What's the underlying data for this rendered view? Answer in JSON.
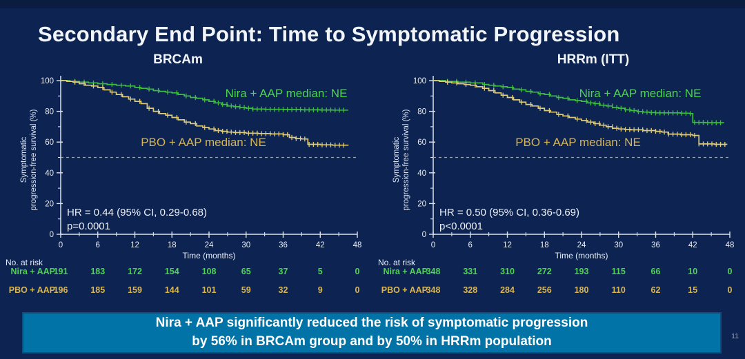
{
  "slide": {
    "title": "Secondary End Point: Time to Symptomatic Progression",
    "page_number": "11",
    "banner": {
      "line1": "Nira + AAP significantly reduced the risk of symptomatic progression",
      "line2": "by 56% in BRCAm group and by 50% in HRRm population"
    }
  },
  "colors": {
    "background": "#0d2452",
    "banner_fill": "#0273a6",
    "nira_text_green": "#4fd44f",
    "nira_curve_green": "#3fbd41",
    "pbo_text_gold": "#d8b552",
    "pbo_curve_gold": "#decb78",
    "axis_white": "#dde3ee",
    "reference_line_gray": "#9aa2b2"
  },
  "chart_data": [
    {
      "type": "line",
      "subtype": "kaplan-meier-step",
      "title": "BRCAm",
      "ylabel_line1": "Symptomatic",
      "ylabel_line2": "progression-free survival (%)",
      "xlabel": "Time (months)",
      "x_ticks": [
        0,
        6,
        12,
        18,
        24,
        30,
        36,
        42,
        48
      ],
      "x_minor_ticks": [
        3,
        9,
        15,
        21,
        27,
        33,
        39,
        45
      ],
      "y_ticks": [
        100,
        80,
        60,
        40,
        20,
        0
      ],
      "y_minor_ticks": [
        90,
        70,
        50,
        30,
        10
      ],
      "xlim": [
        0,
        48
      ],
      "ylim": [
        0,
        100
      ],
      "reference_line_y": 50,
      "grid": false,
      "hr_text": "HR = 0.44 (95% CI, 0.29-0.68)",
      "p_text": "p=0.0001",
      "series": [
        {
          "name": "Nira + AAP",
          "annotation": "Nira + AAP median: NE",
          "points": [
            [
              0,
              100
            ],
            [
              1.5,
              99.5
            ],
            [
              3,
              99
            ],
            [
              4.5,
              98.5
            ],
            [
              6,
              98
            ],
            [
              7.5,
              97.5
            ],
            [
              9,
              97
            ],
            [
              10.5,
              96.5
            ],
            [
              12,
              95.5
            ],
            [
              13,
              95
            ],
            [
              14,
              94.5
            ],
            [
              15,
              93.5
            ],
            [
              16,
              93
            ],
            [
              17,
              92.5
            ],
            [
              18,
              92
            ],
            [
              19,
              91
            ],
            [
              20,
              90
            ],
            [
              21,
              89
            ],
            [
              22,
              88.5
            ],
            [
              23,
              87.5
            ],
            [
              24,
              86.5
            ],
            [
              25,
              85.5
            ],
            [
              26,
              84.5
            ],
            [
              27,
              83.5
            ],
            [
              28,
              83
            ],
            [
              29,
              82.5
            ],
            [
              30,
              82
            ],
            [
              31,
              81.5
            ],
            [
              33,
              81.3
            ],
            [
              36,
              81.2
            ],
            [
              39,
              81
            ],
            [
              42,
              80.9
            ],
            [
              44,
              80.8
            ],
            [
              46.5,
              80.8
            ]
          ]
        },
        {
          "name": "PBO + AAP",
          "annotation": "PBO + AAP median: NE",
          "points": [
            [
              0,
              100
            ],
            [
              1,
              99.5
            ],
            [
              2,
              99
            ],
            [
              3,
              98
            ],
            [
              4,
              97
            ],
            [
              5,
              96.5
            ],
            [
              6,
              95.5
            ],
            [
              7,
              94
            ],
            [
              8,
              92.5
            ],
            [
              9,
              91
            ],
            [
              10,
              89.5
            ],
            [
              11,
              88
            ],
            [
              12,
              86.5
            ],
            [
              13,
              85
            ],
            [
              14,
              82
            ],
            [
              15,
              80
            ],
            [
              16,
              78.5
            ],
            [
              17,
              77.5
            ],
            [
              18,
              76
            ],
            [
              19,
              74.5
            ],
            [
              20,
              73
            ],
            [
              21,
              72
            ],
            [
              22,
              70.5
            ],
            [
              23,
              69.5
            ],
            [
              24,
              68.5
            ],
            [
              25,
              67.5
            ],
            [
              26,
              67
            ],
            [
              27,
              66.5
            ],
            [
              28,
              66.2
            ],
            [
              30,
              65.8
            ],
            [
              32,
              65.5
            ],
            [
              34,
              65.3
            ],
            [
              36,
              64.8
            ],
            [
              37,
              63
            ],
            [
              38,
              62.3
            ],
            [
              39,
              62
            ],
            [
              40,
              58.5
            ],
            [
              42,
              58.2
            ],
            [
              44,
              58
            ],
            [
              46.5,
              57.8
            ]
          ]
        }
      ],
      "risk_table": {
        "header": "No. at risk",
        "rows": [
          {
            "label": "Nira + AAP",
            "values": [
              191,
              183,
              172,
              154,
              108,
              65,
              37,
              5,
              0
            ]
          },
          {
            "label": "PBO + AAP",
            "values": [
              196,
              185,
              159,
              144,
              101,
              59,
              32,
              9,
              0
            ]
          }
        ]
      }
    },
    {
      "type": "line",
      "subtype": "kaplan-meier-step",
      "title": "HRRm (ITT)",
      "ylabel_line1": "Symptomatic",
      "ylabel_line2": "progression-free survival (%)",
      "xlabel": "Time (months)",
      "x_ticks": [
        0,
        6,
        12,
        18,
        24,
        30,
        36,
        42,
        48
      ],
      "x_minor_ticks": [
        3,
        9,
        15,
        21,
        27,
        33,
        39,
        45
      ],
      "y_ticks": [
        100,
        80,
        60,
        40,
        20,
        0
      ],
      "y_minor_ticks": [
        90,
        70,
        50,
        30,
        10
      ],
      "xlim": [
        0,
        48
      ],
      "ylim": [
        0,
        100
      ],
      "reference_line_y": 50,
      "grid": false,
      "hr_text": "HR = 0.50 (95% CI, 0.36-0.69)",
      "p_text": "p<0.0001",
      "series": [
        {
          "name": "Nira + AAP",
          "annotation": "Nira + AAP median: NE",
          "points": [
            [
              0,
              100
            ],
            [
              2,
              99.5
            ],
            [
              4,
              99
            ],
            [
              6,
              98.5
            ],
            [
              8,
              97.5
            ],
            [
              9,
              97
            ],
            [
              10,
              96.5
            ],
            [
              11,
              96
            ],
            [
              12,
              95.5
            ],
            [
              13,
              94.5
            ],
            [
              14,
              94
            ],
            [
              15,
              93
            ],
            [
              16,
              92.5
            ],
            [
              17,
              91.5
            ],
            [
              18,
              91
            ],
            [
              19,
              90
            ],
            [
              20,
              89
            ],
            [
              21,
              88.5
            ],
            [
              22,
              87.5
            ],
            [
              23,
              87
            ],
            [
              24,
              86.5
            ],
            [
              25,
              85.5
            ],
            [
              26,
              85
            ],
            [
              27,
              84
            ],
            [
              28,
              83.5
            ],
            [
              29,
              82.5
            ],
            [
              30,
              82
            ],
            [
              31,
              81
            ],
            [
              32,
              80.5
            ],
            [
              33,
              79.8
            ],
            [
              34,
              79.5
            ],
            [
              35,
              79.2
            ],
            [
              36,
              79
            ],
            [
              38,
              79
            ],
            [
              40,
              78.8
            ],
            [
              41.5,
              78.5
            ],
            [
              42,
              72.8
            ],
            [
              44,
              72.6
            ],
            [
              47,
              72.5
            ]
          ]
        },
        {
          "name": "PBO + AAP",
          "annotation": "PBO + AAP median: NE",
          "points": [
            [
              0,
              100
            ],
            [
              1,
              99.5
            ],
            [
              2,
              99
            ],
            [
              3,
              98.5
            ],
            [
              4,
              98
            ],
            [
              5,
              97.5
            ],
            [
              6,
              97
            ],
            [
              7,
              96
            ],
            [
              8,
              95
            ],
            [
              9,
              93.5
            ],
            [
              10,
              92
            ],
            [
              11,
              90.5
            ],
            [
              12,
              89
            ],
            [
              13,
              87.5
            ],
            [
              14,
              86
            ],
            [
              15,
              84.5
            ],
            [
              16,
              83.5
            ],
            [
              17,
              82
            ],
            [
              18,
              80.5
            ],
            [
              19,
              79.5
            ],
            [
              20,
              78
            ],
            [
              21,
              77
            ],
            [
              22,
              76
            ],
            [
              23,
              75
            ],
            [
              24,
              74
            ],
            [
              25,
              73
            ],
            [
              26,
              72
            ],
            [
              27,
              71
            ],
            [
              28,
              70
            ],
            [
              29,
              69
            ],
            [
              30,
              68.5
            ],
            [
              31,
              68.2
            ],
            [
              32,
              68
            ],
            [
              34,
              67.5
            ],
            [
              36,
              67
            ],
            [
              37,
              66.5
            ],
            [
              38,
              65.2
            ],
            [
              40,
              64.8
            ],
            [
              42,
              64.3
            ],
            [
              43,
              58.8
            ],
            [
              45.5,
              58.5
            ],
            [
              47.5,
              58.3
            ]
          ]
        }
      ],
      "risk_table": {
        "header": "No. at risk",
        "rows": [
          {
            "label": "Nira + AAP",
            "values": [
              348,
              331,
              310,
              272,
              193,
              115,
              66,
              10,
              0
            ]
          },
          {
            "label": "PBO + AAP",
            "values": [
              348,
              328,
              284,
              256,
              180,
              110,
              62,
              15,
              0
            ]
          }
        ]
      }
    }
  ]
}
